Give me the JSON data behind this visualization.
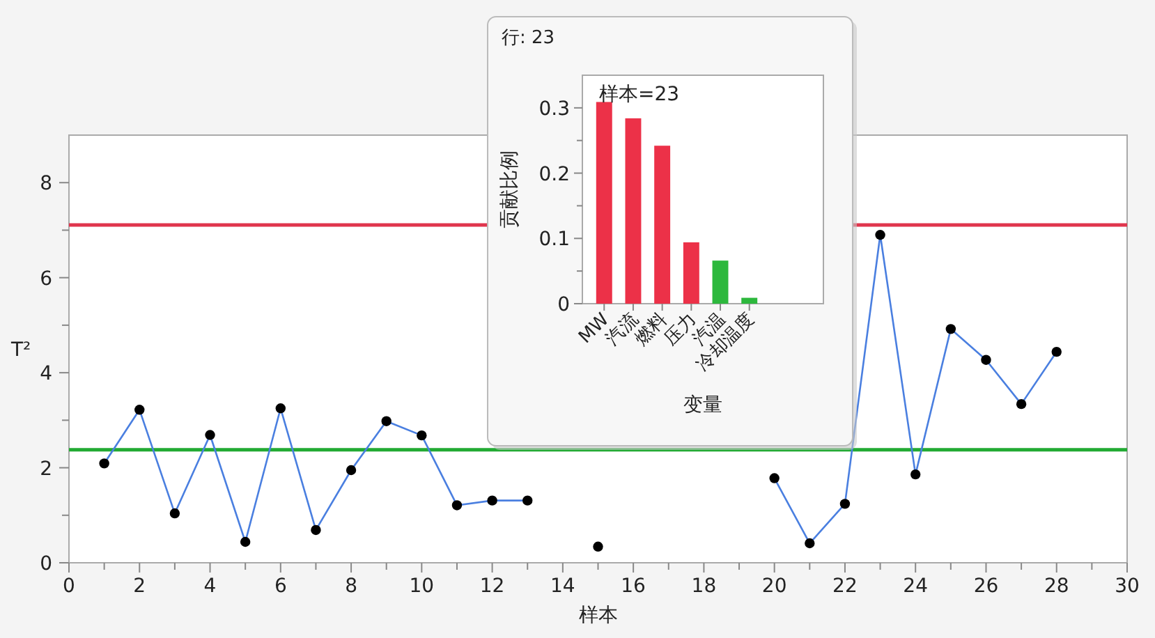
{
  "chart_data": [
    {
      "type": "line",
      "xlabel": "样本",
      "ylabel": "T²",
      "series": [
        {
          "color": "#4a7fe0",
          "colors": [
            "#000000",
            "#000000",
            "#000000",
            "#000000",
            "#000000",
            "#000000",
            "#000000",
            "#000000",
            "#000000",
            "#000000",
            "#000000",
            "#000000",
            "#000000"
          ],
          "x": [
            1,
            2,
            3,
            4,
            5,
            6,
            7,
            8,
            9,
            10,
            11,
            12,
            13
          ],
          "values": [
            2.09,
            3.22,
            1.04,
            2.69,
            0.44,
            3.25,
            0.69,
            1.95,
            2.98,
            2.68,
            1.21,
            1.31,
            1.31
          ]
        },
        {
          "color": "#4a7fe0",
          "colors": [
            "#000000"
          ],
          "x": [
            15
          ],
          "values": [
            0.34
          ]
        },
        {
          "color": "#4a7fe0",
          "colors": [
            "#000000",
            "#000000",
            "#000000",
            "#000000",
            "#000000",
            "#000000",
            "#000000",
            "#000000",
            "#000000"
          ],
          "x": [
            20,
            21,
            22,
            23,
            24,
            25,
            26,
            27,
            28
          ],
          "values": [
            1.78,
            0.41,
            1.24,
            6.9,
            1.86,
            4.92,
            4.27,
            3.34,
            4.44
          ]
        }
      ],
      "marker": "circle",
      "line_style": "solid",
      "xlim": [
        0,
        30
      ],
      "xticks": [
        0,
        2,
        4,
        6,
        8,
        10,
        12,
        14,
        16,
        18,
        20,
        22,
        24,
        26,
        28,
        30
      ],
      "ylim": [
        0,
        9
      ],
      "yticks": [
        0,
        2,
        4,
        6,
        8
      ],
      "ref_lines": [
        {
          "axis": "y",
          "value": 7.11,
          "color": "#e0354d"
        },
        {
          "axis": "y",
          "value": 2.38,
          "color": "#22aa33"
        }
      ]
    },
    {
      "type": "bar",
      "title": "行: 23",
      "xlabel": "变量",
      "ylabel": "贡献比例",
      "categories": [
        "MW",
        "汽流",
        "燃料",
        "压力",
        "汽温",
        "冷却温度"
      ],
      "values": [
        0.309,
        0.284,
        0.242,
        0.094,
        0.066,
        0.009
      ],
      "colors": [
        "#ec3148",
        "#ec3148",
        "#ec3148",
        "#ec3148",
        "#2db83d",
        "#2db83d"
      ],
      "ylim": [
        0,
        0.35
      ],
      "yticks": [
        0,
        0.1,
        0.2,
        0.3
      ],
      "annotations": [
        "样本=23"
      ]
    }
  ]
}
